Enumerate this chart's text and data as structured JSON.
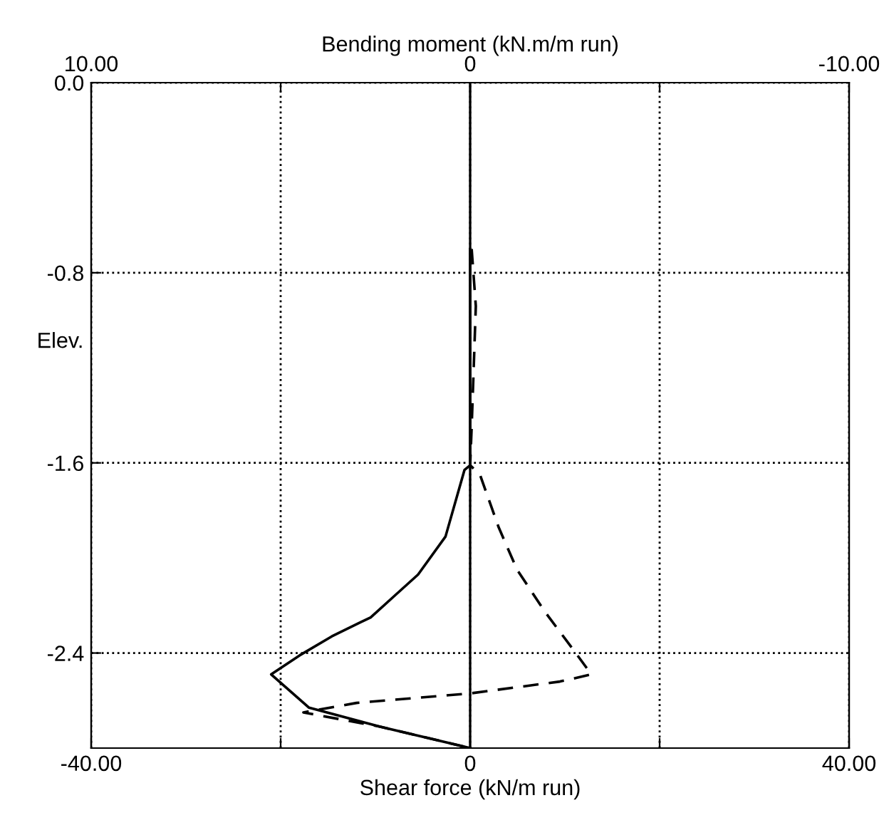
{
  "chart_data": {
    "type": "line",
    "xlabel": "Shear force (kN/m run)",
    "x2label": "Bending moment (kN.m/m run)",
    "ylabel": "Elev.",
    "xlim": [
      -40,
      40
    ],
    "xticks": [
      {
        "value": -40,
        "label": "-40.00"
      },
      {
        "value": -20,
        "label": null
      },
      0,
      {
        "value": 20,
        "label": null
      },
      {
        "value": 40,
        "label": "40.00"
      }
    ],
    "x2lim": [
      10,
      -10
    ],
    "x2ticks": [
      {
        "value": 10,
        "label": "10.00"
      },
      {
        "value": 5,
        "label": null
      },
      0,
      {
        "value": -5,
        "label": null
      },
      {
        "value": -10,
        "label": "-10.00"
      }
    ],
    "ylim": [
      -2.8,
      0
    ],
    "yticks": [
      {
        "value": 0,
        "label": "0.0"
      },
      -0.8,
      -1.6,
      -2.4
    ],
    "grid": true,
    "ref_lines": [
      {
        "axis": "x",
        "value": 0,
        "color": "#000000",
        "line_style": "solid"
      }
    ],
    "series": [
      {
        "color": "#000000",
        "line_style": "solid",
        "x": [
          0,
          0,
          -0.6,
          -2.6,
          -5.5,
          -8.0,
          -10.5,
          -14.6,
          -18.0,
          -21.0,
          -17.0,
          -9.5,
          -1.0,
          0
        ],
        "values": [
          -0.7,
          -1.61,
          -1.63,
          -1.91,
          -2.07,
          -2.16,
          -2.25,
          -2.33,
          -2.41,
          -2.49,
          -2.63,
          -2.71,
          -2.79,
          -2.8
        ]
      },
      {
        "color": "#000000",
        "line_style": "dashed",
        "axis": "x2",
        "x": [
          -0.04,
          -0.15,
          -0.04,
          0,
          -0.26,
          -0.75,
          -1.24,
          -1.99,
          -2.74,
          -3.2,
          -2.37,
          0,
          3.0,
          4.4,
          2.37,
          0
        ],
        "values": [
          -0.7,
          -0.94,
          -1.45,
          -1.61,
          -1.65,
          -1.87,
          -2.05,
          -2.23,
          -2.39,
          -2.49,
          -2.52,
          -2.57,
          -2.61,
          -2.65,
          -2.71,
          -2.8
        ]
      }
    ]
  }
}
